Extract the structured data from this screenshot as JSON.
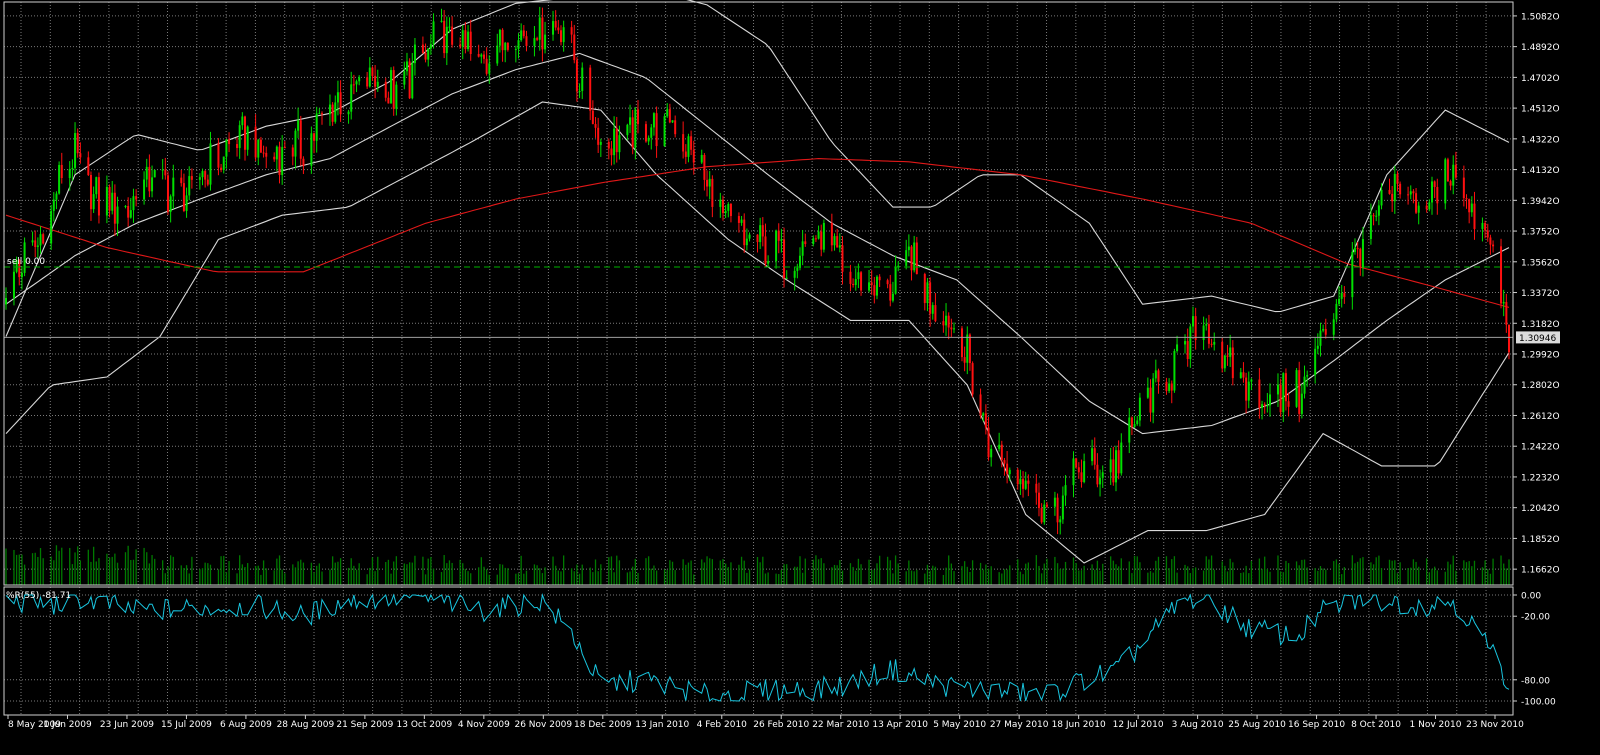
{
  "colors": {
    "background": "#000000",
    "grid": "#7a7a7a",
    "axis": "#cfcfcf",
    "label": "#ffffff",
    "bull": "#00e000",
    "bear": "#ff1010",
    "bands": "#d8d8d8",
    "ma_long": "#e01818",
    "sell_line": "#00b000",
    "volume": "#007a00",
    "wpr": "#19c6e0"
  },
  "chart_data": [
    {
      "type": "line",
      "subtype": "candlestick",
      "ylim": [
        1.1564,
        1.5168
      ],
      "y_ticks": [
        "1.5082O",
        "1.4892O",
        "1.4702O",
        "1.4512O",
        "1.4322O",
        "1.4132O",
        "1.3942O",
        "1.3752O",
        "1.3562O",
        "1.3372O",
        "1.3182O",
        "1.2992O",
        "1.2802O",
        "1.2612O",
        "1.2422O",
        "1.2232O",
        "1.2042O",
        "1.1852O",
        "1.1662O"
      ],
      "y_tick_values": [
        1.5082,
        1.4892,
        1.4702,
        1.4512,
        1.4322,
        1.4132,
        1.3942,
        1.3752,
        1.3562,
        1.3372,
        1.3182,
        1.2992,
        1.2802,
        1.2612,
        1.2422,
        1.2232,
        1.2042,
        1.1852,
        1.1662
      ],
      "x_ticks": [
        "8 May 2009",
        "1 Jun 2009",
        "23 Jun 2009",
        "15 Jul 2009",
        "6 Aug 2009",
        "28 Aug 2009",
        "21 Sep 2009",
        "13 Oct 2009",
        "4 Nov 2009",
        "26 Nov 2009",
        "18 Dec 2009",
        "13 Jan 2010",
        "4 Feb 2010",
        "26 Feb 2010",
        "22 Mar 2010",
        "13 Apr 2010",
        "5 May 2010",
        "27 May 2010",
        "18 Jun 2010",
        "12 Jul 2010",
        "3 Aug 2010",
        "25 Aug 2010",
        "16 Sep 2010",
        "8 Oct 2010",
        "1 Nov 2010",
        "23 Nov 2010"
      ],
      "x_dates": [
        "2009-05-08",
        "2010-11-25"
      ],
      "current_price": 1.30946,
      "current_price_label": "1.30946",
      "sell_level": 1.353,
      "sell_label": "sell 0.00",
      "grid": true,
      "series": [
        {
          "kind": "candles",
          "points": [
            [
              "2009-05-08",
              1.34
            ],
            [
              "2009-05-20",
              1.37
            ],
            [
              "2009-05-27",
              1.4
            ],
            [
              "2009-06-02",
              1.425
            ],
            [
              "2009-06-12",
              1.395
            ],
            [
              "2009-06-22",
              1.39
            ],
            [
              "2009-07-01",
              1.41
            ],
            [
              "2009-07-12",
              1.395
            ],
            [
              "2009-07-24",
              1.415
            ],
            [
              "2009-08-05",
              1.435
            ],
            [
              "2009-08-13",
              1.42
            ],
            [
              "2009-08-28",
              1.43
            ],
            [
              "2009-09-07",
              1.45
            ],
            [
              "2009-09-21",
              1.47
            ],
            [
              "2009-10-01",
              1.46
            ],
            [
              "2009-10-13",
              1.485
            ],
            [
              "2009-10-23",
              1.5
            ],
            [
              "2009-11-03",
              1.48
            ],
            [
              "2009-11-13",
              1.495
            ],
            [
              "2009-11-26",
              1.5
            ],
            [
              "2009-12-03",
              1.505
            ],
            [
              "2009-12-11",
              1.46
            ],
            [
              "2009-12-18",
              1.435
            ],
            [
              "2010-01-01",
              1.435
            ],
            [
              "2010-01-13",
              1.445
            ],
            [
              "2010-01-25",
              1.41
            ],
            [
              "2010-02-04",
              1.38
            ],
            [
              "2010-02-10",
              1.37
            ],
            [
              "2010-02-26",
              1.36
            ],
            [
              "2010-03-12",
              1.37
            ],
            [
              "2010-03-22",
              1.345
            ],
            [
              "2010-04-06",
              1.34
            ],
            [
              "2010-04-13",
              1.36
            ],
            [
              "2010-04-23",
              1.33
            ],
            [
              "2010-05-05",
              1.3
            ],
            [
              "2010-05-14",
              1.24
            ],
            [
              "2010-05-24",
              1.23
            ],
            [
              "2010-05-27",
              1.22
            ],
            [
              "2010-06-07",
              1.195
            ],
            [
              "2010-06-10",
              1.21
            ],
            [
              "2010-06-18",
              1.23
            ],
            [
              "2010-06-29",
              1.23
            ],
            [
              "2010-07-12",
              1.27
            ],
            [
              "2010-07-23",
              1.295
            ],
            [
              "2010-08-03",
              1.32
            ],
            [
              "2010-08-10",
              1.29
            ],
            [
              "2010-08-25",
              1.27
            ],
            [
              "2010-09-07",
              1.275
            ],
            [
              "2010-09-16",
              1.31
            ],
            [
              "2010-09-24",
              1.345
            ],
            [
              "2010-10-08",
              1.39
            ],
            [
              "2010-10-15",
              1.4
            ],
            [
              "2010-10-25",
              1.39
            ],
            [
              "2010-11-04",
              1.415
            ],
            [
              "2010-11-12",
              1.38
            ],
            [
              "2010-11-19",
              1.36
            ],
            [
              "2010-11-25",
              1.3095
            ]
          ]
        },
        {
          "kind": "band_upper",
          "points": [
            [
              "2009-05-08",
              1.31
            ],
            [
              "2009-06-03",
              1.41
            ],
            [
              "2009-06-26",
              1.435
            ],
            [
              "2009-07-20",
              1.425
            ],
            [
              "2009-08-14",
              1.44
            ],
            [
              "2009-09-07",
              1.448
            ],
            [
              "2009-09-30",
              1.468
            ],
            [
              "2009-10-23",
              1.5
            ],
            [
              "2009-11-16",
              1.516
            ],
            [
              "2009-12-10",
              1.52
            ],
            [
              "2010-01-04",
              1.525
            ],
            [
              "2010-01-27",
              1.515
            ],
            [
              "2010-02-19",
              1.49
            ],
            [
              "2010-03-15",
              1.43
            ],
            [
              "2010-04-07",
              1.39
            ],
            [
              "2010-04-22",
              1.39
            ],
            [
              "2010-05-10",
              1.41
            ],
            [
              "2010-05-25",
              1.41
            ],
            [
              "2010-06-20",
              1.38
            ],
            [
              "2010-07-10",
              1.33
            ],
            [
              "2010-08-05",
              1.335
            ],
            [
              "2010-08-30",
              1.325
            ],
            [
              "2010-09-20",
              1.335
            ],
            [
              "2010-10-10",
              1.41
            ],
            [
              "2010-11-01",
              1.45
            ],
            [
              "2010-11-25",
              1.43
            ]
          ]
        },
        {
          "kind": "band_middle",
          "points": [
            [
              "2009-05-08",
              1.33
            ],
            [
              "2009-06-03",
              1.36
            ],
            [
              "2009-06-26",
              1.38
            ],
            [
              "2009-07-20",
              1.395
            ],
            [
              "2009-08-14",
              1.41
            ],
            [
              "2009-09-07",
              1.42
            ],
            [
              "2009-09-30",
              1.44
            ],
            [
              "2009-10-23",
              1.46
            ],
            [
              "2009-11-16",
              1.475
            ],
            [
              "2009-12-10",
              1.485
            ],
            [
              "2010-01-04",
              1.47
            ],
            [
              "2010-01-27",
              1.44
            ],
            [
              "2010-02-19",
              1.41
            ],
            [
              "2010-03-15",
              1.38
            ],
            [
              "2010-04-07",
              1.36
            ],
            [
              "2010-05-01",
              1.345
            ],
            [
              "2010-05-25",
              1.31
            ],
            [
              "2010-06-20",
              1.27
            ],
            [
              "2010-07-10",
              1.25
            ],
            [
              "2010-08-05",
              1.255
            ],
            [
              "2010-08-30",
              1.27
            ],
            [
              "2010-09-20",
              1.295
            ],
            [
              "2010-10-10",
              1.32
            ],
            [
              "2010-11-01",
              1.345
            ],
            [
              "2010-11-25",
              1.365
            ]
          ]
        },
        {
          "kind": "band_lower",
          "points": [
            [
              "2009-05-08",
              1.25
            ],
            [
              "2009-05-25",
              1.28
            ],
            [
              "2009-06-15",
              1.285
            ],
            [
              "2009-07-05",
              1.31
            ],
            [
              "2009-07-27",
              1.37
            ],
            [
              "2009-08-20",
              1.385
            ],
            [
              "2009-09-14",
              1.39
            ],
            [
              "2009-10-07",
              1.41
            ],
            [
              "2009-10-30",
              1.43
            ],
            [
              "2009-11-26",
              1.455
            ],
            [
              "2009-12-18",
              1.45
            ],
            [
              "2010-01-08",
              1.41
            ],
            [
              "2010-02-04",
              1.37
            ],
            [
              "2010-02-26",
              1.345
            ],
            [
              "2010-03-22",
              1.32
            ],
            [
              "2010-04-13",
              1.32
            ],
            [
              "2010-05-05",
              1.28
            ],
            [
              "2010-05-27",
              1.2
            ],
            [
              "2010-06-18",
              1.17
            ],
            [
              "2010-07-12",
              1.19
            ],
            [
              "2010-08-03",
              1.19
            ],
            [
              "2010-08-25",
              1.2
            ],
            [
              "2010-09-16",
              1.25
            ],
            [
              "2010-10-08",
              1.23
            ],
            [
              "2010-10-29",
              1.23
            ],
            [
              "2010-11-25",
              1.3
            ]
          ]
        },
        {
          "kind": "ma_long",
          "points": [
            [
              "2009-05-08",
              1.385
            ],
            [
              "2009-06-15",
              1.365
            ],
            [
              "2009-07-26",
              1.35
            ],
            [
              "2009-08-28",
              1.35
            ],
            [
              "2009-10-13",
              1.38
            ],
            [
              "2009-11-16",
              1.395
            ],
            [
              "2009-12-18",
              1.405
            ],
            [
              "2010-01-27",
              1.415
            ],
            [
              "2010-03-10",
              1.42
            ],
            [
              "2010-04-13",
              1.418
            ],
            [
              "2010-05-25",
              1.41
            ],
            [
              "2010-07-10",
              1.395
            ],
            [
              "2010-08-20",
              1.38
            ],
            [
              "2010-09-25",
              1.355
            ],
            [
              "2010-10-25",
              1.342
            ],
            [
              "2010-11-25",
              1.328
            ]
          ]
        }
      ]
    },
    {
      "type": "line",
      "title": "%R(55) -81.71",
      "ylim": [
        -100,
        0
      ],
      "y_ticks": [
        "0.00",
        "-20.00",
        "-80.00",
        "-100.00"
      ],
      "y_tick_values": [
        0,
        -20,
        -80,
        -100
      ],
      "grid": true,
      "series": [
        {
          "name": "%R(55)",
          "points": [
            [
              "2009-05-08",
              -5
            ],
            [
              "2009-05-27",
              -10
            ],
            [
              "2009-06-03",
              -2
            ],
            [
              "2009-06-26",
              -15
            ],
            [
              "2009-07-20",
              -12
            ],
            [
              "2009-08-10",
              -10
            ],
            [
              "2009-08-28",
              -20
            ],
            [
              "2009-09-14",
              -5
            ],
            [
              "2009-10-13",
              -2
            ],
            [
              "2009-11-03",
              -15
            ],
            [
              "2009-11-26",
              -5
            ],
            [
              "2009-12-08",
              -40
            ],
            [
              "2009-12-18",
              -85
            ],
            [
              "2010-01-04",
              -80
            ],
            [
              "2010-01-27",
              -95
            ],
            [
              "2010-02-19",
              -90
            ],
            [
              "2010-03-15",
              -88
            ],
            [
              "2010-04-07",
              -70
            ],
            [
              "2010-04-25",
              -85
            ],
            [
              "2010-05-13",
              -90
            ],
            [
              "2010-06-03",
              -95
            ],
            [
              "2010-06-18",
              -80
            ],
            [
              "2010-07-01",
              -70
            ],
            [
              "2010-07-12",
              -40
            ],
            [
              "2010-07-25",
              -5
            ],
            [
              "2010-08-03",
              -2
            ],
            [
              "2010-08-18",
              -30
            ],
            [
              "2010-09-06",
              -40
            ],
            [
              "2010-09-16",
              -15
            ],
            [
              "2010-10-01",
              -3
            ],
            [
              "2010-10-25",
              -10
            ],
            [
              "2010-11-04",
              -5
            ],
            [
              "2010-11-15",
              -40
            ],
            [
              "2010-11-25",
              -82
            ]
          ]
        }
      ]
    }
  ]
}
